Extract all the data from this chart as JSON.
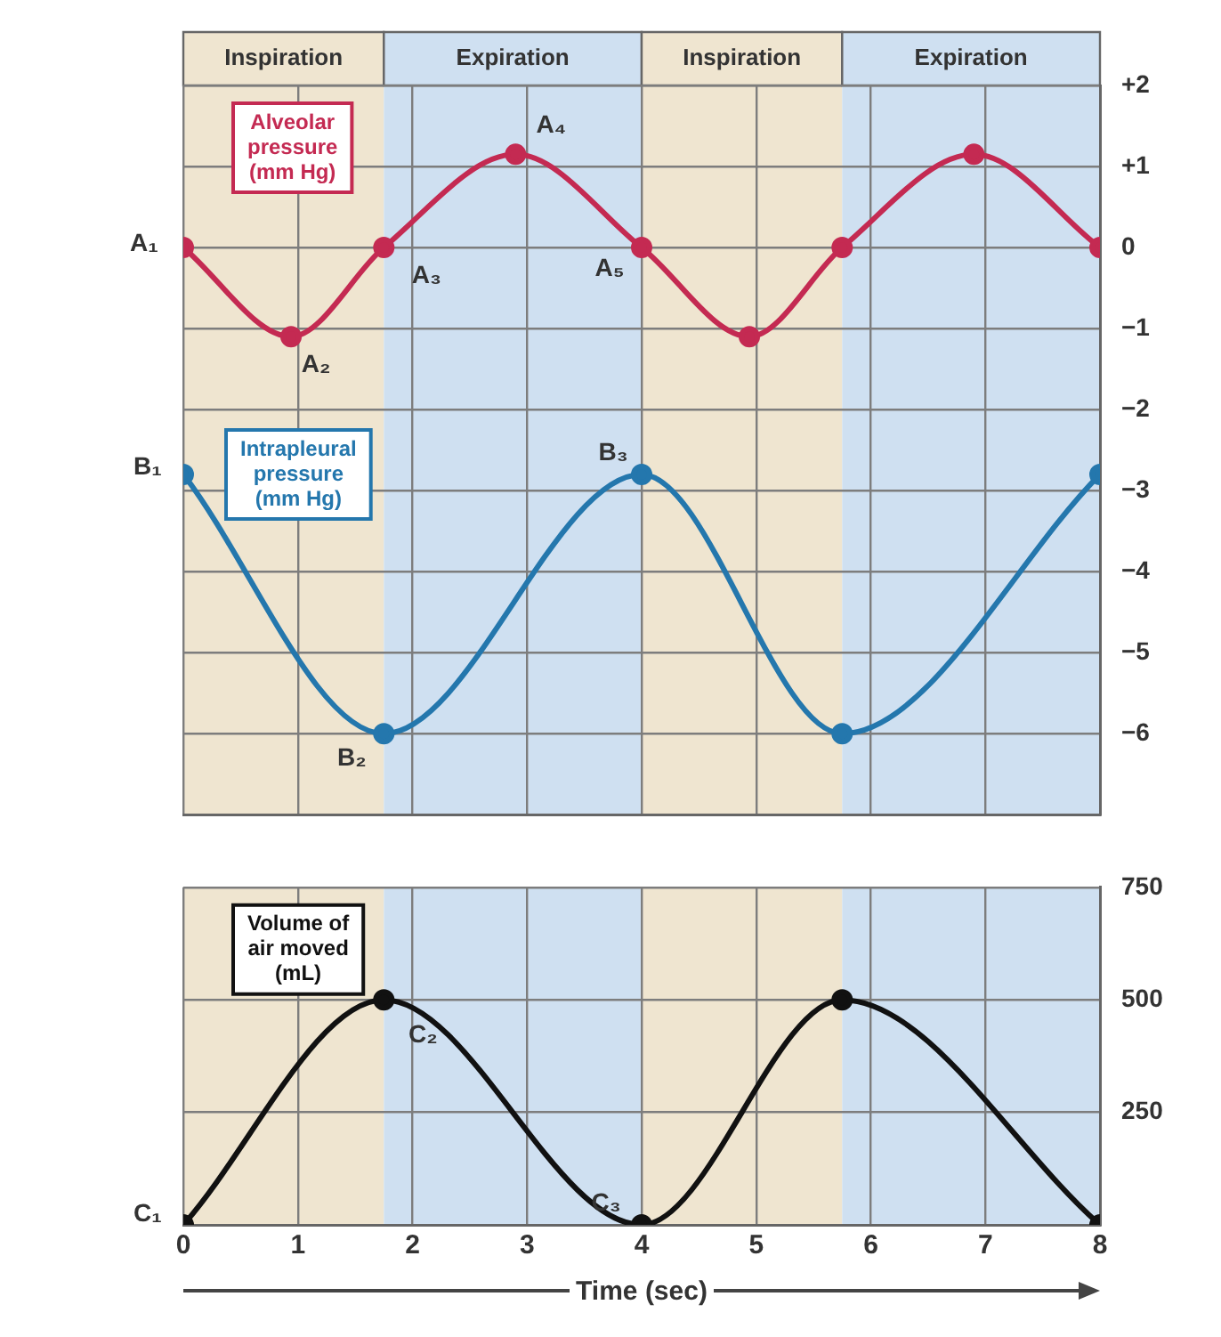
{
  "chart_data": [
    {
      "type": "line",
      "xlim": [
        0,
        8
      ],
      "xticks": [
        0,
        1,
        2,
        3,
        4,
        5,
        6,
        7,
        8
      ],
      "ylim": [
        -7,
        2
      ],
      "yticks": [
        {
          "value": 2,
          "label": "+2"
        },
        {
          "value": 1,
          "label": "+1"
        },
        0,
        {
          "value": -1,
          "label": "−1"
        },
        {
          "value": -2,
          "label": "−2"
        },
        {
          "value": -3,
          "label": "−3"
        },
        {
          "value": -4,
          "label": "−4"
        },
        {
          "value": -5,
          "label": "−5"
        },
        {
          "value": -6,
          "label": "−6"
        }
      ],
      "tick_labels": "y",
      "grid": true,
      "marker": "circle",
      "line_style": "solid",
      "series": [
        {
          "name": "Alveolar pressure (mm Hg)",
          "color": "#c42a52",
          "x": [
            0,
            0.94,
            1.75,
            2.9,
            4,
            4.94,
            5.75,
            6.9,
            8
          ],
          "values": [
            0,
            -1.1,
            0,
            1.15,
            0,
            -1.1,
            0,
            1.15,
            0
          ]
        },
        {
          "name": "Intrapleural pressure (mm Hg)",
          "color": "#2477ad",
          "x": [
            0,
            1.75,
            4,
            5.75,
            8
          ],
          "values": [
            -2.8,
            -6,
            -2.8,
            -6,
            -2.8
          ]
        }
      ],
      "bands": [
        {
          "axis": "x",
          "from": 0,
          "to": 1.75,
          "label": "Inspiration",
          "color": "#efe5d0"
        },
        {
          "axis": "x",
          "from": 1.75,
          "to": 4,
          "label": "Expiration",
          "color": "#cfe0f1"
        },
        {
          "axis": "x",
          "from": 4,
          "to": 5.75,
          "label": "Inspiration",
          "color": "#efe5d0"
        },
        {
          "axis": "x",
          "from": 5.75,
          "to": 8,
          "label": "Expiration",
          "color": "#cfe0f1"
        }
      ],
      "annotations": [
        {
          "text": "A₁",
          "x": 0,
          "y": 0
        },
        {
          "text": "A₂",
          "x": 0.94,
          "y": -1.1
        },
        {
          "text": "A₃",
          "x": 1.75,
          "y": 0
        },
        {
          "text": "A₄",
          "x": 2.9,
          "y": 1.15
        },
        {
          "text": "A₅",
          "x": 4,
          "y": 0
        },
        {
          "text": "B₁",
          "x": 0,
          "y": -2.8
        },
        {
          "text": "B₂",
          "x": 1.75,
          "y": -6
        },
        {
          "text": "B₃",
          "x": 4,
          "y": -2.8
        }
      ]
    },
    {
      "type": "line",
      "xlim": [
        0,
        8
      ],
      "xticks": [
        0,
        1,
        2,
        3,
        4,
        5,
        6,
        7,
        8
      ],
      "ylim": [
        0,
        750
      ],
      "yticks": [
        250,
        500,
        750
      ],
      "xlabel": "Time (sec)",
      "grid": true,
      "marker": "circle",
      "line_style": "solid",
      "series": [
        {
          "name": "Volume of air moved (mL)",
          "color": "#111111",
          "x": [
            0,
            1.75,
            4,
            5.75,
            8
          ],
          "values": [
            0,
            500,
            0,
            500,
            0
          ]
        }
      ],
      "bands": [
        {
          "axis": "x",
          "from": 0,
          "to": 1.75,
          "color": "#efe5d0"
        },
        {
          "axis": "x",
          "from": 1.75,
          "to": 4,
          "color": "#cfe0f1"
        },
        {
          "axis": "x",
          "from": 4,
          "to": 5.75,
          "color": "#efe5d0"
        },
        {
          "axis": "x",
          "from": 5.75,
          "to": 8,
          "color": "#cfe0f1"
        }
      ],
      "annotations": [
        {
          "text": "C₁",
          "x": 0,
          "y": 0
        },
        {
          "text": "C₂",
          "x": 1.75,
          "y": 500
        },
        {
          "text": "C₃",
          "x": 4,
          "y": 0
        }
      ]
    }
  ]
}
